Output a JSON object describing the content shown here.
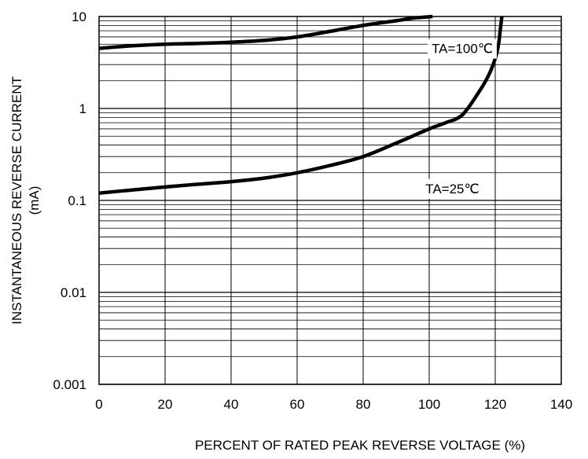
{
  "chart_data": {
    "type": "line",
    "title": "",
    "xlabel": "PERCENT OF RATED PEAK REVERSE VOLTAGE (%)",
    "ylabel": [
      "INSTANTANEOUS REVERSE CURRENT",
      "(mA)"
    ],
    "xlim": [
      0,
      140
    ],
    "ylim": [
      0.001,
      10
    ],
    "yscale": "log",
    "grid": true,
    "x_ticks": [
      0,
      20,
      40,
      60,
      80,
      100,
      120,
      140
    ],
    "x_tick_labels": [
      "0",
      "20",
      "40",
      "60",
      "80",
      "100",
      "120",
      "140"
    ],
    "y_ticks": [
      0.001,
      0.01,
      0.1,
      1,
      10
    ],
    "y_tick_labels": [
      "0.001",
      "0.01",
      "0.1",
      "1",
      "10"
    ],
    "series": [
      {
        "name": "TA=100℃",
        "x": [
          0,
          10,
          20,
          30,
          40,
          50,
          60,
          70,
          80,
          90,
          95,
          101
        ],
        "y": [
          4.5,
          4.8,
          5.0,
          5.1,
          5.25,
          5.5,
          6.0,
          6.9,
          8.0,
          9.0,
          9.6,
          10.0
        ]
      },
      {
        "name": "TA=25℃",
        "x": [
          0,
          10,
          20,
          30,
          40,
          50,
          60,
          70,
          80,
          90,
          100,
          105,
          110,
          115,
          118,
          120,
          121,
          121.5,
          122
        ],
        "y": [
          0.12,
          0.13,
          0.14,
          0.15,
          0.16,
          0.175,
          0.2,
          0.24,
          0.3,
          0.42,
          0.6,
          0.7,
          0.85,
          1.5,
          2.3,
          3.5,
          5.0,
          7.0,
          10.0
        ]
      }
    ],
    "annotations": [
      {
        "text": "TA=100℃",
        "x": 110,
        "y": 4.5
      },
      {
        "text": "TA=25℃",
        "x": 107,
        "y": 0.135
      }
    ]
  }
}
